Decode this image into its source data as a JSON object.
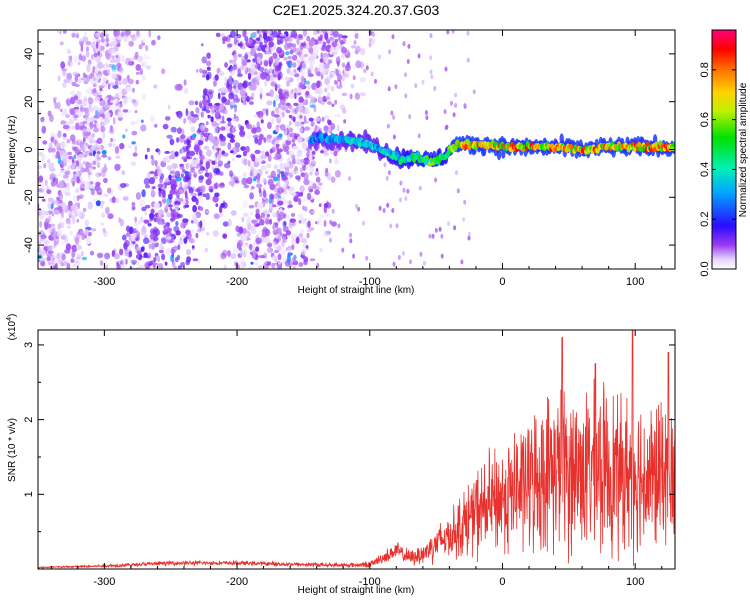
{
  "title": "C2E1.2025.324.20.37.G03",
  "chart_data": [
    {
      "type": "heatmap",
      "name": "spectrogram",
      "xlabel": "Height of straight line (km)",
      "ylabel": "Frequency (Hz)",
      "xlim": [
        -350,
        130
      ],
      "ylim": [
        -50,
        50
      ],
      "xticks": [
        -300,
        -200,
        -100,
        0,
        100
      ],
      "yticks": [
        -40,
        -20,
        0,
        20,
        40
      ],
      "colorbar": {
        "label": "Normalized spectral amplitude",
        "range": [
          0.0,
          0.96
        ],
        "ticks": [
          0.0,
          0.2,
          0.4,
          0.6,
          0.8
        ],
        "tick_labels": [
          "0.0",
          "0.2",
          "0.4",
          "0.6",
          "0.8"
        ]
      },
      "signal_track": {
        "x": [
          -145,
          -135,
          -125,
          -115,
          -105,
          -95,
          -85,
          -75,
          -65,
          -55,
          -48,
          -42,
          -38,
          -35,
          -30,
          -20,
          -10,
          0,
          20,
          40,
          60,
          80,
          100,
          120,
          130
        ],
        "y": [
          4,
          5,
          4,
          4,
          3,
          1,
          -2,
          -4,
          -3,
          -5,
          -4,
          -2,
          1,
          2,
          2,
          2,
          2,
          1,
          1,
          1,
          0,
          1,
          1,
          1,
          1
        ],
        "amplitude": [
          0.3,
          0.35,
          0.35,
          0.4,
          0.4,
          0.4,
          0.45,
          0.5,
          0.55,
          0.6,
          0.55,
          0.5,
          0.7,
          0.75,
          0.8,
          0.85,
          0.85,
          0.85,
          0.85,
          0.85,
          0.85,
          0.85,
          0.85,
          0.85,
          0.85
        ]
      },
      "noise_bands": [
        {
          "x_at_y_min": -345,
          "x_at_y_max": -290,
          "amplitude": 0.05
        },
        {
          "x_at_y_min": -270,
          "x_at_y_max": -180,
          "amplitude": 0.08
        },
        {
          "x_at_y_min": -180,
          "x_at_y_max": -135,
          "amplitude": 0.06
        }
      ]
    },
    {
      "type": "line",
      "name": "snr",
      "xlabel": "Height of straight line (km)",
      "ylabel": "SNR (10 * v/v)",
      "y_multiplier": "(x10^4)",
      "y_multiplier_base": "(x10",
      "y_multiplier_exp": "4",
      "y_multiplier_close": ")",
      "xlim": [
        -350,
        130
      ],
      "ylim": [
        0,
        3.2
      ],
      "xticks": [
        -300,
        -200,
        -100,
        0,
        100
      ],
      "yticks": [
        1,
        2,
        3
      ],
      "color": "#e8302c",
      "envelope_x": [
        -350,
        -300,
        -250,
        -200,
        -150,
        -120,
        -100,
        -90,
        -80,
        -70,
        -60,
        -50,
        -40,
        -30,
        -20,
        -10,
        0,
        10,
        20,
        30,
        40,
        50,
        60,
        70,
        80,
        90,
        100,
        110,
        120,
        130
      ],
      "envelope_mean": [
        0.02,
        0.04,
        0.08,
        0.08,
        0.06,
        0.05,
        0.06,
        0.15,
        0.25,
        0.15,
        0.2,
        0.35,
        0.45,
        0.6,
        0.75,
        0.85,
        0.95,
        1.05,
        1.15,
        1.25,
        1.35,
        1.3,
        1.35,
        1.3,
        1.35,
        1.25,
        1.3,
        1.2,
        1.25,
        1.2
      ],
      "envelope_spread": [
        0.01,
        0.02,
        0.03,
        0.03,
        0.03,
        0.03,
        0.04,
        0.08,
        0.12,
        0.1,
        0.15,
        0.25,
        0.3,
        0.45,
        0.6,
        0.7,
        0.75,
        0.85,
        0.9,
        1.0,
        1.1,
        1.15,
        1.1,
        1.1,
        1.15,
        1.05,
        1.1,
        1.05,
        1.0,
        1.0
      ],
      "peaks": [
        {
          "x": 45,
          "y": 3.1
        },
        {
          "x": 98,
          "y": 3.2
        },
        {
          "x": 125,
          "y": 2.9
        },
        {
          "x": 70,
          "y": 2.75
        }
      ]
    }
  ]
}
